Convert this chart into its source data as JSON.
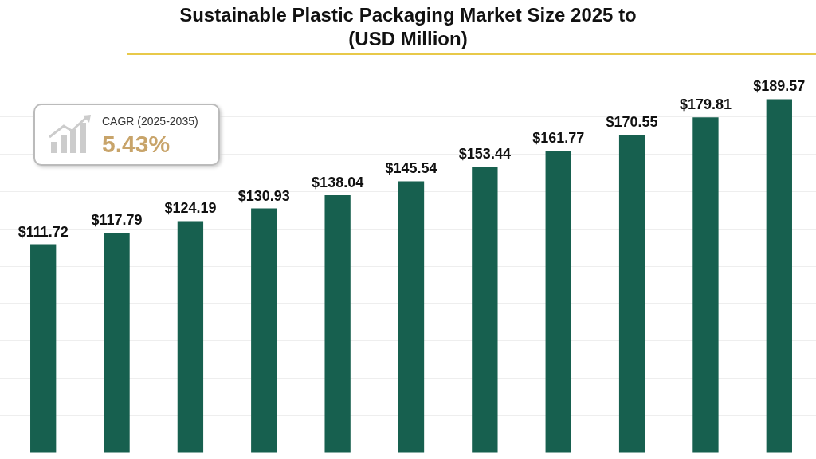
{
  "chart_data": {
    "type": "bar",
    "title": "Sustainable Plastic Packaging Market Size 2025 to",
    "subtitle": "(USD Million)",
    "categories": [
      null,
      null,
      null,
      null,
      null,
      null,
      null,
      null,
      null,
      null,
      null
    ],
    "values": [
      111.72,
      117.79,
      124.19,
      130.93,
      138.04,
      145.54,
      153.44,
      161.77,
      170.55,
      179.81,
      189.57
    ],
    "color": "#17604f",
    "value_labels": [
      "$111.72",
      "$117.79",
      "$124.19",
      "$130.93",
      "$138.04",
      "$145.54",
      "$153.44",
      "$161.77",
      "$170.55",
      "$179.81",
      "$189.57"
    ],
    "annotations": [
      "CAGR (2025-2035)",
      "5.43%"
    ],
    "grid": "y",
    "tick_labels": false
  }
}
